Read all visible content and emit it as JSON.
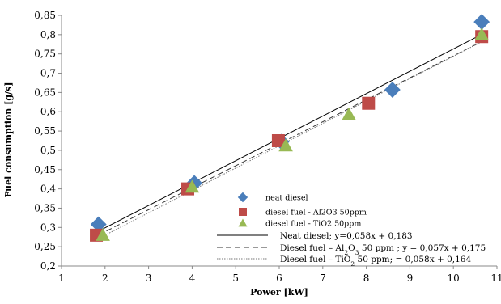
{
  "chart_data": {
    "type": "scatter",
    "xlabel": "Power [kW]",
    "ylabel": "Fuel consumption [g/s]",
    "xlim": [
      1,
      11
    ],
    "ylim": [
      0.2,
      0.85
    ],
    "x_ticks": [
      "1",
      "2",
      "3",
      "4",
      "5",
      "6",
      "7",
      "8",
      "9",
      "10",
      "11"
    ],
    "y_ticks": [
      "0,2",
      "0,25",
      "0,3",
      "0,35",
      "0,4",
      "0,45",
      "0,5",
      "0,55",
      "0,6",
      "0,65",
      "0,7",
      "0,75",
      "0,8",
      "0,85"
    ],
    "grid": false,
    "legend_position": "bottom-right",
    "series": [
      {
        "name": "neat diesel",
        "marker": "diamond",
        "color": "#4A7EBB",
        "points": [
          [
            1.85,
            0.308
          ],
          [
            4.05,
            0.415
          ],
          [
            6.05,
            0.522
          ],
          [
            8.6,
            0.657
          ],
          [
            10.65,
            0.833
          ]
        ]
      },
      {
        "name": "diesel fuel - Al2O3  50ppm",
        "marker": "square",
        "color": "#BE4B48",
        "points": [
          [
            1.8,
            0.28
          ],
          [
            3.9,
            0.4
          ],
          [
            5.98,
            0.525
          ],
          [
            8.05,
            0.622
          ],
          [
            10.65,
            0.795
          ]
        ]
      },
      {
        "name": "diesel fuel - TiO2  50ppm",
        "marker": "triangle",
        "color": "#98B954",
        "points": [
          [
            1.95,
            0.28
          ],
          [
            4.0,
            0.405
          ],
          [
            6.15,
            0.512
          ],
          [
            7.6,
            0.593
          ],
          [
            10.65,
            0.8
          ]
        ]
      }
    ],
    "trendlines": [
      {
        "label": "Neat diesel; y=0,058x + 0,183",
        "style": "solid",
        "slope": 0.058,
        "intercept": 0.183,
        "x_range": [
          1.85,
          10.65
        ]
      },
      {
        "label_parts": [
          "Diesel fuel – Al",
          "2",
          "O",
          "3",
          " 50 ppm ; y = 0,057x + 0,175"
        ],
        "style": "dashed",
        "slope": 0.057,
        "intercept": 0.175,
        "x_range": [
          1.85,
          10.65
        ]
      },
      {
        "label_parts": [
          "Diesel fuel – TiO",
          "2",
          " 50 ppm; = 0,058x + 0,164"
        ],
        "style": "dotted",
        "slope": 0.058,
        "intercept": 0.164,
        "x_range": [
          1.85,
          10.65
        ]
      }
    ]
  }
}
